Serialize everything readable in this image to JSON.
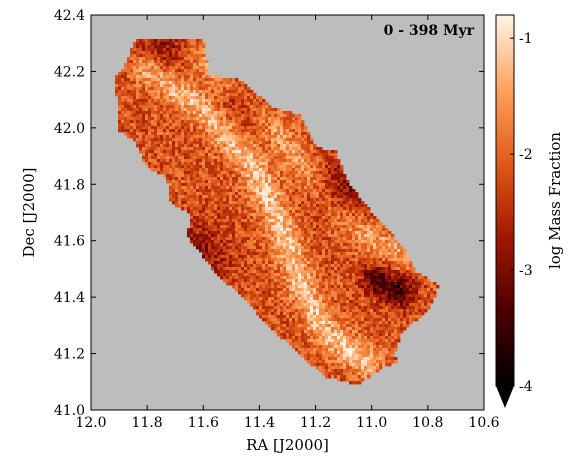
{
  "chart_data": {
    "type": "heatmap",
    "annotation": "0 - 398 Myr",
    "xlabel": "RA [J2000]",
    "ylabel": "Dec [J2000]",
    "xlim": [
      12.0,
      10.6
    ],
    "ylim": [
      41.0,
      42.4
    ],
    "x_inverted": true,
    "x_ticks": [
      12.0,
      11.8,
      11.6,
      11.4,
      11.2,
      11.0,
      10.8,
      10.6
    ],
    "x_tick_labels": [
      "12.0",
      "11.8",
      "11.6",
      "11.4",
      "11.2",
      "11.0",
      "10.8",
      "10.6"
    ],
    "y_ticks": [
      41.0,
      41.2,
      41.4,
      41.6,
      41.8,
      42.0,
      42.2,
      42.4
    ],
    "y_tick_labels": [
      "41.0",
      "41.2",
      "41.4",
      "41.6",
      "41.8",
      "42.0",
      "42.2",
      "42.4"
    ],
    "background_color": "#bdbdbd",
    "colorbar": {
      "label": "log Mass Fraction",
      "range": [
        -4,
        -0.8
      ],
      "ticks": [
        -4,
        -3,
        -2,
        -1
      ],
      "tick_labels": [
        "-4",
        "-3",
        "-2",
        "-1"
      ],
      "extend": "min",
      "colormap": "gist_heat",
      "colors": [
        "#000000",
        "#4a0000",
        "#a01800",
        "#e05a1a",
        "#ffa25c",
        "#fff4e8"
      ]
    },
    "footprint_ra_dec": [
      [
        11.84,
        42.32
      ],
      [
        11.6,
        42.31
      ],
      [
        11.58,
        42.19
      ],
      [
        11.47,
        42.17
      ],
      [
        11.35,
        42.07
      ],
      [
        11.26,
        42.05
      ],
      [
        11.2,
        41.93
      ],
      [
        11.13,
        41.92
      ],
      [
        11.08,
        41.8
      ],
      [
        11.0,
        41.7
      ],
      [
        10.89,
        41.58
      ],
      [
        10.84,
        41.49
      ],
      [
        10.76,
        41.44
      ],
      [
        10.8,
        41.35
      ],
      [
        10.89,
        41.28
      ],
      [
        10.92,
        41.2
      ],
      [
        10.91,
        41.17
      ],
      [
        10.96,
        41.15
      ],
      [
        11.05,
        41.09
      ],
      [
        11.17,
        41.12
      ],
      [
        11.28,
        41.22
      ],
      [
        11.37,
        41.3
      ],
      [
        11.45,
        41.39
      ],
      [
        11.56,
        41.49
      ],
      [
        11.66,
        41.62
      ],
      [
        11.64,
        41.69
      ],
      [
        11.72,
        41.74
      ],
      [
        11.73,
        41.82
      ],
      [
        11.81,
        41.87
      ],
      [
        11.84,
        41.95
      ],
      [
        11.9,
        41.99
      ],
      [
        11.91,
        42.12
      ],
      [
        11.92,
        42.17
      ],
      [
        11.88,
        42.22
      ]
    ],
    "features": [
      {
        "name": "bright ridge",
        "ra_dec": [
          [
            11.8,
            42.21
          ],
          [
            11.58,
            42.05
          ],
          [
            11.42,
            41.86
          ],
          [
            11.33,
            41.67
          ],
          [
            11.25,
            41.44
          ],
          [
            11.16,
            41.27
          ],
          [
            11.02,
            41.17
          ]
        ],
        "log_value": -1.2
      },
      {
        "name": "outer bright arc",
        "ra_dec": [
          [
            11.65,
            42.27
          ],
          [
            11.48,
            42.13
          ],
          [
            11.36,
            42.02
          ],
          [
            11.22,
            41.83
          ],
          [
            11.1,
            41.68
          ],
          [
            11.0,
            41.6
          ],
          [
            10.88,
            41.55
          ]
        ],
        "log_value": -1.5
      },
      {
        "name": "dark patch north",
        "ra_dec": [
          [
            11.73,
            42.29
          ]
        ],
        "log_value": -2.9
      },
      {
        "name": "dark patch 42.1",
        "ra_dec": [
          [
            11.46,
            42.1
          ]
        ],
        "log_value": -2.8
      },
      {
        "name": "dark patch east",
        "ra_dec": [
          [
            11.11,
            41.78
          ]
        ],
        "log_value": -3.0
      },
      {
        "name": "dark patch southeast",
        "ra_dec": [
          [
            10.98,
            41.46
          ],
          [
            10.9,
            41.42
          ]
        ],
        "log_value": -3.4
      },
      {
        "name": "dark patch west",
        "ra_dec": [
          [
            11.62,
            41.55
          ]
        ],
        "log_value": -2.9
      }
    ]
  }
}
